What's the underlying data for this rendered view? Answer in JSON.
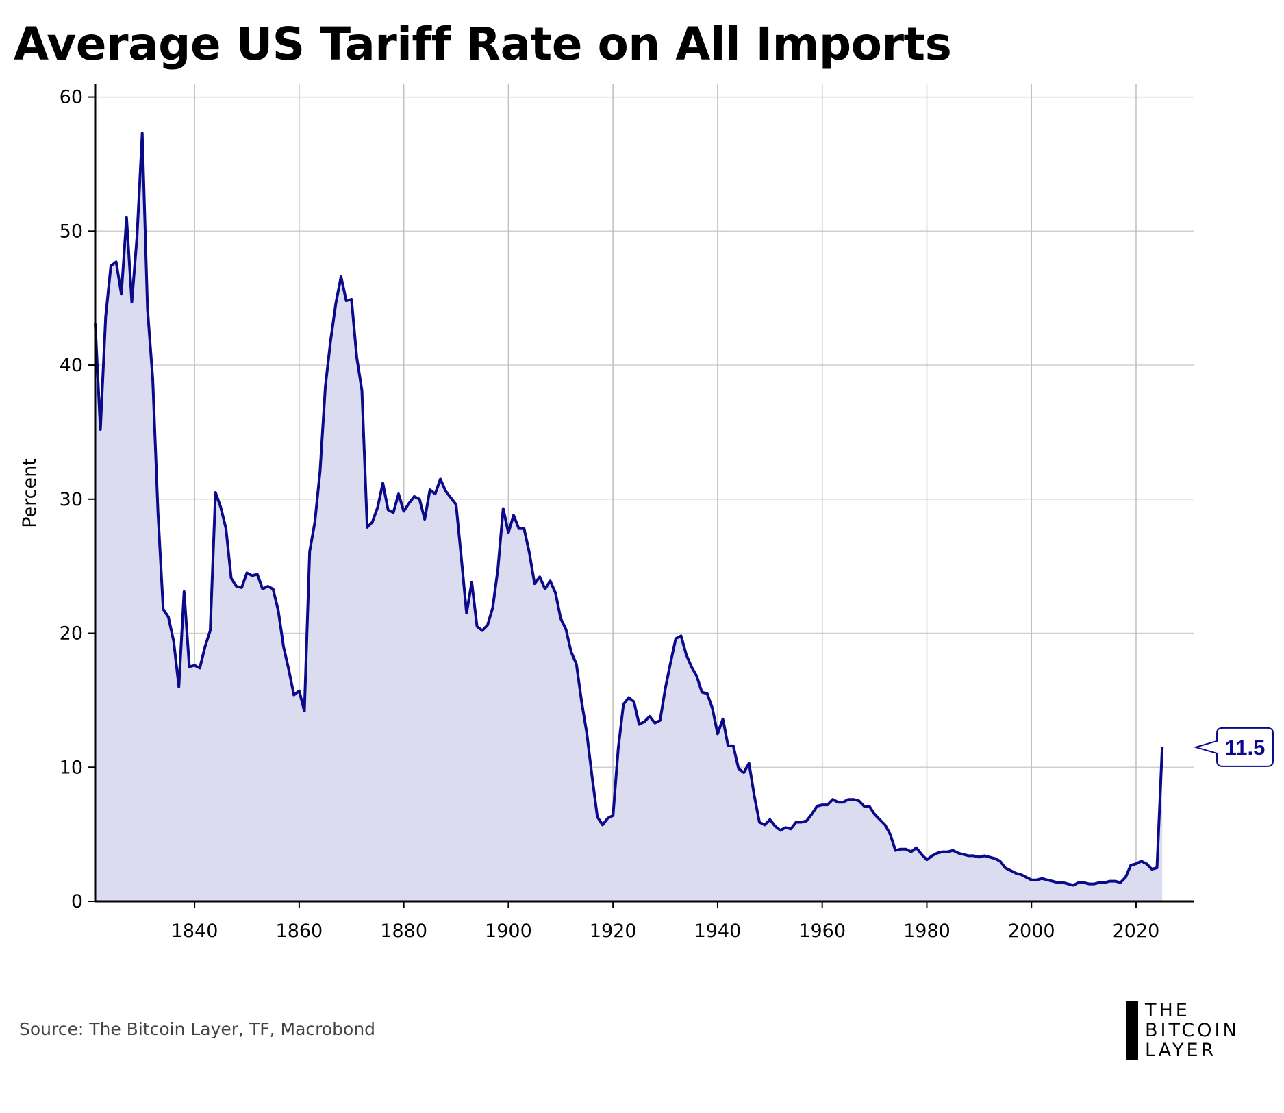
{
  "chart_data": {
    "type": "area",
    "title": "Average US Tariff Rate on All Imports",
    "xlabel": "",
    "ylabel": "Percent",
    "xlim": [
      1821,
      2031
    ],
    "ylim": [
      0,
      61
    ],
    "x_ticks": [
      1840,
      1860,
      1880,
      1900,
      1920,
      1940,
      1960,
      1980,
      2000,
      2020
    ],
    "y_ticks": [
      0,
      10,
      20,
      30,
      40,
      50,
      60
    ],
    "grid": true,
    "line_color": "#0a0a8a",
    "fill_color": "#dcdcf0",
    "callout": {
      "x": 2025,
      "value": "11.5"
    },
    "series": [
      {
        "x": [
          1821,
          1822,
          1823,
          1824,
          1825,
          1826,
          1827,
          1828,
          1829,
          1830,
          1831,
          1832,
          1833,
          1834,
          1835,
          1836,
          1837,
          1838,
          1839,
          1840,
          1841,
          1842,
          1843,
          1844,
          1845,
          1846,
          1847,
          1848,
          1849,
          1850,
          1851,
          1852,
          1853,
          1854,
          1855,
          1856,
          1857,
          1858,
          1859,
          1860,
          1861,
          1862,
          1863,
          1864,
          1865,
          1866,
          1867,
          1868,
          1869,
          1870,
          1871,
          1872,
          1873,
          1874,
          1875,
          1876,
          1877,
          1878,
          1879,
          1880,
          1881,
          1882,
          1883,
          1884,
          1885,
          1886,
          1887,
          1888,
          1889,
          1890,
          1891,
          1892,
          1893,
          1894,
          1895,
          1896,
          1897,
          1898,
          1899,
          1900,
          1901,
          1902,
          1903,
          1904,
          1905,
          1906,
          1907,
          1908,
          1909,
          1910,
          1911,
          1912,
          1913,
          1914,
          1915,
          1916,
          1917,
          1918,
          1919,
          1920,
          1921,
          1922,
          1923,
          1924,
          1925,
          1926,
          1927,
          1928,
          1929,
          1930,
          1931,
          1932,
          1933,
          1934,
          1935,
          1936,
          1937,
          1938,
          1939,
          1940,
          1941,
          1942,
          1943,
          1944,
          1945,
          1946,
          1947,
          1948,
          1949,
          1950,
          1951,
          1952,
          1953,
          1954,
          1955,
          1956,
          1957,
          1958,
          1959,
          1960,
          1961,
          1962,
          1963,
          1964,
          1965,
          1966,
          1967,
          1968,
          1969,
          1970,
          1971,
          1972,
          1973,
          1974,
          1975,
          1976,
          1977,
          1978,
          1979,
          1980,
          1981,
          1982,
          1983,
          1984,
          1985,
          1986,
          1987,
          1988,
          1989,
          1990,
          1991,
          1992,
          1993,
          1994,
          1995,
          1996,
          1997,
          1998,
          1999,
          2000,
          2001,
          2002,
          2003,
          2004,
          2005,
          2006,
          2007,
          2008,
          2009,
          2010,
          2011,
          2012,
          2013,
          2014,
          2015,
          2016,
          2017,
          2018,
          2019,
          2020,
          2021,
          2022,
          2023,
          2024,
          2025
        ],
        "values": [
          43.1,
          35.2,
          43.6,
          47.4,
          47.7,
          45.3,
          51.0,
          44.7,
          49.6,
          57.3,
          44.2,
          39.0,
          29.0,
          21.8,
          21.2,
          19.4,
          16.0,
          23.1,
          17.5,
          17.6,
          17.4,
          19.0,
          20.2,
          30.5,
          29.4,
          27.8,
          24.1,
          23.5,
          23.4,
          24.5,
          24.3,
          24.4,
          23.3,
          23.5,
          23.3,
          21.7,
          19.0,
          17.3,
          15.4,
          15.7,
          14.2,
          26.1,
          28.3,
          32.1,
          38.4,
          41.8,
          44.6,
          46.6,
          44.8,
          44.9,
          40.6,
          38.1,
          27.9,
          28.3,
          29.4,
          31.2,
          29.2,
          29.0,
          30.4,
          29.1,
          29.7,
          30.2,
          30.0,
          28.5,
          30.7,
          30.4,
          31.5,
          30.6,
          30.1,
          29.6,
          25.6,
          21.5,
          23.8,
          20.5,
          20.2,
          20.6,
          21.9,
          24.8,
          29.3,
          27.5,
          28.8,
          27.8,
          27.8,
          26.0,
          23.7,
          24.2,
          23.3,
          23.9,
          23.0,
          21.1,
          20.3,
          18.6,
          17.7,
          14.9,
          12.5,
          9.3,
          6.3,
          5.7,
          6.2,
          6.4,
          11.4,
          14.7,
          15.2,
          14.9,
          13.2,
          13.4,
          13.8,
          13.3,
          13.5,
          15.9,
          17.8,
          19.6,
          19.8,
          18.4,
          17.5,
          16.8,
          15.6,
          15.5,
          14.4,
          12.5,
          13.6,
          11.6,
          11.6,
          9.9,
          9.6,
          10.3,
          7.9,
          5.9,
          5.7,
          6.1,
          5.6,
          5.3,
          5.5,
          5.4,
          5.9,
          5.9,
          6.0,
          6.5,
          7.1,
          7.2,
          7.2,
          7.6,
          7.4,
          7.4,
          7.6,
          7.6,
          7.5,
          7.1,
          7.1,
          6.5,
          6.1,
          5.7,
          5.0,
          3.8,
          3.9,
          3.9,
          3.7,
          4.0,
          3.5,
          3.1,
          3.4,
          3.6,
          3.7,
          3.7,
          3.8,
          3.6,
          3.5,
          3.4,
          3.4,
          3.3,
          3.4,
          3.3,
          3.2,
          3.0,
          2.5,
          2.3,
          2.1,
          2.0,
          1.8,
          1.6,
          1.6,
          1.7,
          1.6,
          1.5,
          1.4,
          1.4,
          1.3,
          1.2,
          1.4,
          1.4,
          1.3,
          1.3,
          1.4,
          1.4,
          1.5,
          1.5,
          1.4,
          1.8,
          2.7,
          2.8,
          3.0,
          2.8,
          2.4,
          2.5,
          11.5
        ]
      }
    ]
  },
  "source": "Source: The Bitcoin Layer, TF, Macrobond",
  "logo": {
    "line1": "THE",
    "line2": "BITCOIN",
    "line3": "LAYER"
  }
}
